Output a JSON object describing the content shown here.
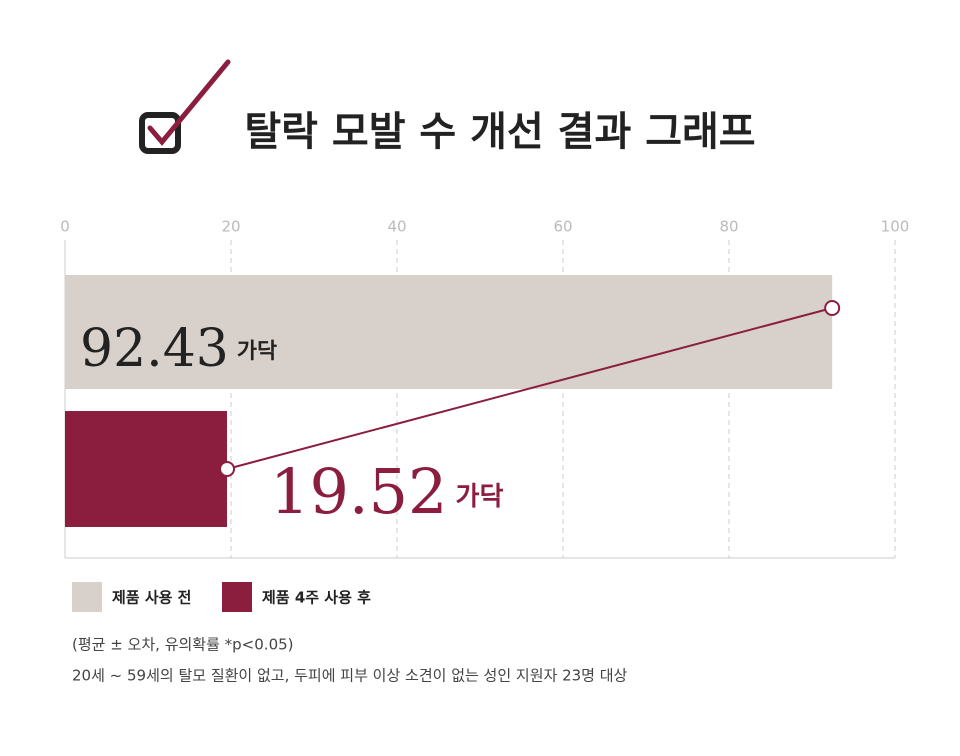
{
  "chart_data": {
    "type": "hbar",
    "title": "탈락 모발 수 개선 결과 그래프",
    "unit": "가닥",
    "series": [
      {
        "name": "제품 사용 전",
        "color": "#d8d1cb",
        "text_color": "#222222",
        "values": [
          92.43
        ]
      },
      {
        "name": "제품 4주 사용 후",
        "color": "#8b1e3f",
        "text_color": "#8b1e3f",
        "values": [
          19.52
        ]
      }
    ],
    "xlim": [
      0,
      100
    ],
    "xticks": [
      0,
      20,
      40,
      60,
      80,
      100
    ],
    "grid": true,
    "notes": [
      "(평균 ± 오차, 유의확률 *p<0.05)",
      "20세 ~ 59세의 탈모 질환이 없고, 두피에 피부 이상 소견이 없는 성인 지원자 23명 대상"
    ]
  }
}
